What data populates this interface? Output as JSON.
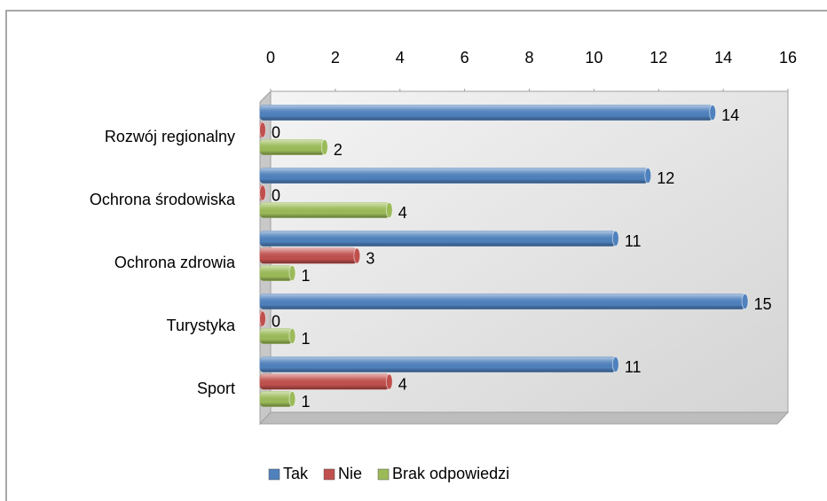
{
  "chart_data": {
    "type": "bar",
    "orientation": "horizontal",
    "categories": [
      "Rozwój regionalny",
      "Ochrona środowiska",
      "Ochrona zdrowia",
      "Turystyka",
      "Sport"
    ],
    "series": [
      {
        "name": "Tak",
        "color": "#4f81bd",
        "values": [
          14,
          12,
          11,
          15,
          11
        ]
      },
      {
        "name": "Nie",
        "color": "#c0504d",
        "values": [
          0,
          0,
          3,
          0,
          4
        ]
      },
      {
        "name": "Brak odpowiedzi",
        "color": "#9bbb59",
        "values": [
          2,
          4,
          1,
          1,
          1
        ]
      }
    ],
    "xlim": [
      0,
      16
    ],
    "xticks": [
      0,
      2,
      4,
      6,
      8,
      10,
      12,
      14,
      16
    ],
    "legend": "bottom"
  }
}
